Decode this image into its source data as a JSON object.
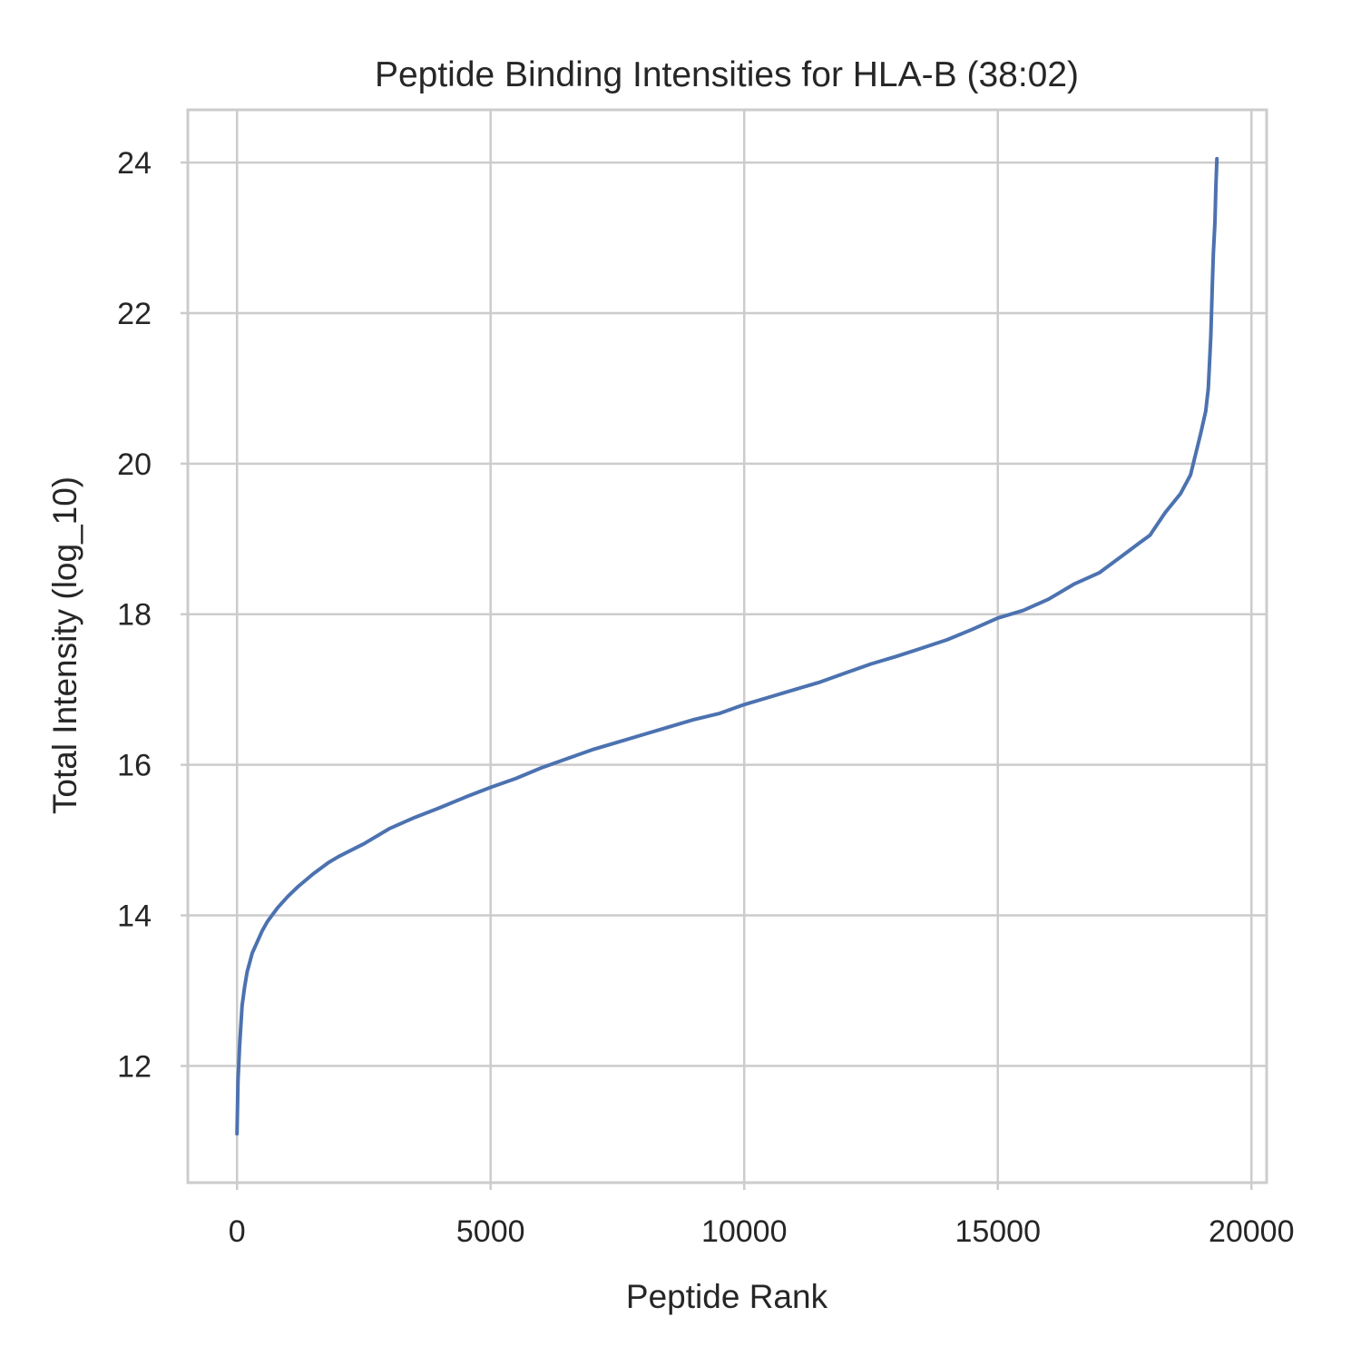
{
  "chart_data": {
    "type": "line",
    "title": "Peptide Binding Intensities for HLA-B (38:02)",
    "xlabel": "Peptide Rank",
    "ylabel": "Total Intensity (log_10)",
    "xlim": [
      -970,
      20300
    ],
    "ylim": [
      10.45,
      24.7
    ],
    "x_ticks": [
      0,
      5000,
      10000,
      15000,
      20000
    ],
    "y_ticks": [
      12,
      14,
      16,
      18,
      20,
      22,
      24
    ],
    "grid": true,
    "legend": "none",
    "series": [
      {
        "color": "#4c72b0",
        "x": [
          0,
          20,
          50,
          100,
          150,
          200,
          300,
          400,
          500,
          600,
          800,
          1000,
          1200,
          1500,
          1800,
          2000,
          2500,
          3000,
          3500,
          4000,
          4500,
          5000,
          5500,
          6000,
          6500,
          7000,
          7500,
          8000,
          8500,
          9000,
          9500,
          10000,
          10500,
          11000,
          11500,
          12000,
          12500,
          13000,
          13500,
          14000,
          14500,
          15000,
          15500,
          16000,
          16500,
          17000,
          17500,
          17800,
          18000,
          18300,
          18600,
          18800,
          19000,
          19100,
          19150,
          19200,
          19230,
          19250,
          19280,
          19300,
          19320
        ],
        "y": [
          11.1,
          11.8,
          12.25,
          12.8,
          13.05,
          13.25,
          13.5,
          13.65,
          13.8,
          13.92,
          14.1,
          14.25,
          14.38,
          14.55,
          14.7,
          14.78,
          14.95,
          15.15,
          15.3,
          15.43,
          15.57,
          15.7,
          15.82,
          15.96,
          16.08,
          16.2,
          16.3,
          16.4,
          16.5,
          16.6,
          16.68,
          16.8,
          16.9,
          17.0,
          17.1,
          17.22,
          17.34,
          17.44,
          17.55,
          17.66,
          17.8,
          17.95,
          18.05,
          18.2,
          18.4,
          18.55,
          18.8,
          18.95,
          19.05,
          19.35,
          19.6,
          19.85,
          20.4,
          20.7,
          21.0,
          21.7,
          22.4,
          22.8,
          23.2,
          23.7,
          24.05
        ]
      }
    ]
  }
}
